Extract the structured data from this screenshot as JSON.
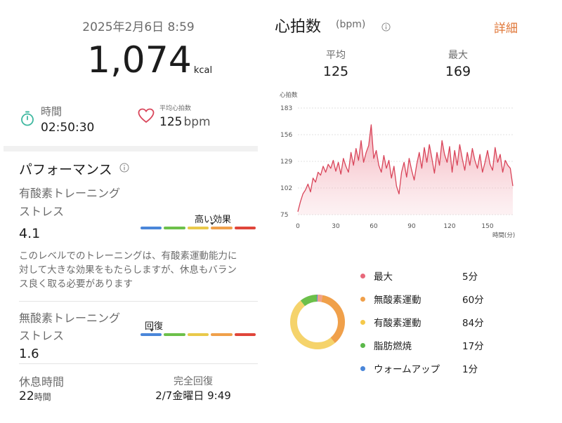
{
  "workout": {
    "datetime": "2025年2月6日 8:59",
    "calories_value": "1,074",
    "calories_unit": "kcal",
    "time_label": "時間",
    "time_value": "02:50:30",
    "avg_hr_label": "平均心拍数",
    "avg_hr_value": "125",
    "avg_hr_unit": "bpm"
  },
  "performance": {
    "title": "パフォーマンス",
    "aerobic": {
      "label_line1": "有酸素トレーニング",
      "label_line2": "ストレス",
      "value": "4.1",
      "marker_label": "高い効果",
      "level_fraction": 0.62,
      "description_line1": "このレベルでのトレーニングは、有酸素運動能力に",
      "description_line2": "対して大きな効果をもたらしますが、休息もバラン",
      "description_line3": "ス良く取る必要があります"
    },
    "anaerobic": {
      "label_line1": "無酸素トレーニング",
      "label_line2": "ストレス",
      "value": "1.6",
      "marker_label": "回復",
      "level_fraction": 0.1
    },
    "rest": {
      "label": "休息時間",
      "value": "22",
      "unit": "時間"
    },
    "recovery": {
      "label": "完全回復",
      "value": "2/7金曜日 9:49"
    },
    "scale_colors": [
      "#4a86d9",
      "#6cc04a",
      "#e9c94a",
      "#f0a04a",
      "#e0453a"
    ]
  },
  "heart_rate": {
    "title": "心拍数",
    "unit": "(bpm)",
    "details_link": "詳細",
    "avg_label": "平均",
    "avg_value": "125",
    "max_label": "最大",
    "max_value": "169"
  },
  "chart_data": {
    "type": "area",
    "ylabel": "心拍数",
    "xlabel": "時間(分)",
    "y_ticks": [
      "183",
      "156",
      "129",
      "102",
      "75"
    ],
    "x_ticks": [
      "0",
      "30",
      "60",
      "90",
      "120",
      "150"
    ],
    "xlim": [
      0,
      170
    ],
    "ylim": [
      75,
      183
    ],
    "color": "#d9455a",
    "x": [
      0,
      2,
      4,
      6,
      8,
      10,
      12,
      14,
      16,
      18,
      20,
      22,
      24,
      26,
      28,
      30,
      32,
      34,
      36,
      38,
      40,
      42,
      44,
      46,
      48,
      50,
      52,
      54,
      56,
      58,
      60,
      62,
      64,
      66,
      68,
      70,
      72,
      74,
      76,
      78,
      80,
      82,
      84,
      86,
      88,
      90,
      92,
      94,
      96,
      98,
      100,
      102,
      104,
      106,
      108,
      110,
      112,
      114,
      116,
      118,
      120,
      122,
      124,
      126,
      128,
      130,
      132,
      134,
      136,
      138,
      140,
      142,
      144,
      146,
      148,
      150,
      152,
      154,
      156,
      158,
      160,
      162,
      164,
      166,
      168,
      170
    ],
    "y": [
      78,
      88,
      96,
      100,
      106,
      98,
      112,
      108,
      118,
      115,
      124,
      118,
      126,
      122,
      130,
      119,
      128,
      116,
      132,
      124,
      118,
      138,
      125,
      142,
      130,
      150,
      128,
      138,
      145,
      166,
      132,
      140,
      125,
      118,
      135,
      122,
      130,
      112,
      124,
      104,
      96,
      118,
      128,
      113,
      132,
      120,
      110,
      126,
      138,
      122,
      143,
      128,
      146,
      132,
      117,
      138,
      125,
      150,
      136,
      128,
      144,
      118,
      140,
      125,
      146,
      132,
      120,
      138,
      125,
      142,
      130,
      122,
      136,
      118,
      128,
      140,
      126,
      120,
      143,
      128,
      136,
      118,
      130,
      125,
      122,
      104
    ]
  },
  "hr_zones": {
    "donut": {
      "segments": [
        {
          "zone": "最大",
          "minutes": 5,
          "color": "#f0a38a"
        },
        {
          "zone": "無酸素運動",
          "minutes": 60,
          "color": "#f0a04a"
        },
        {
          "zone": "有酸素運動",
          "minutes": 84,
          "color": "#f5d36b"
        },
        {
          "zone": "脂肪燃焼",
          "minutes": 17,
          "color": "#6cc04a"
        },
        {
          "zone": "ウォームアップ",
          "minutes": 1,
          "color": "#4a86d9"
        }
      ]
    },
    "items": [
      {
        "label": "最大",
        "value": "5分",
        "color": "#e8687a"
      },
      {
        "label": "無酸素運動",
        "value": "60分",
        "color": "#f0a04a"
      },
      {
        "label": "有酸素運動",
        "value": "84分",
        "color": "#f5c94a"
      },
      {
        "label": "脂肪燃焼",
        "value": "17分",
        "color": "#5bb84a"
      },
      {
        "label": "ウォームアップ",
        "value": "1分",
        "color": "#4a86d9"
      }
    ]
  }
}
